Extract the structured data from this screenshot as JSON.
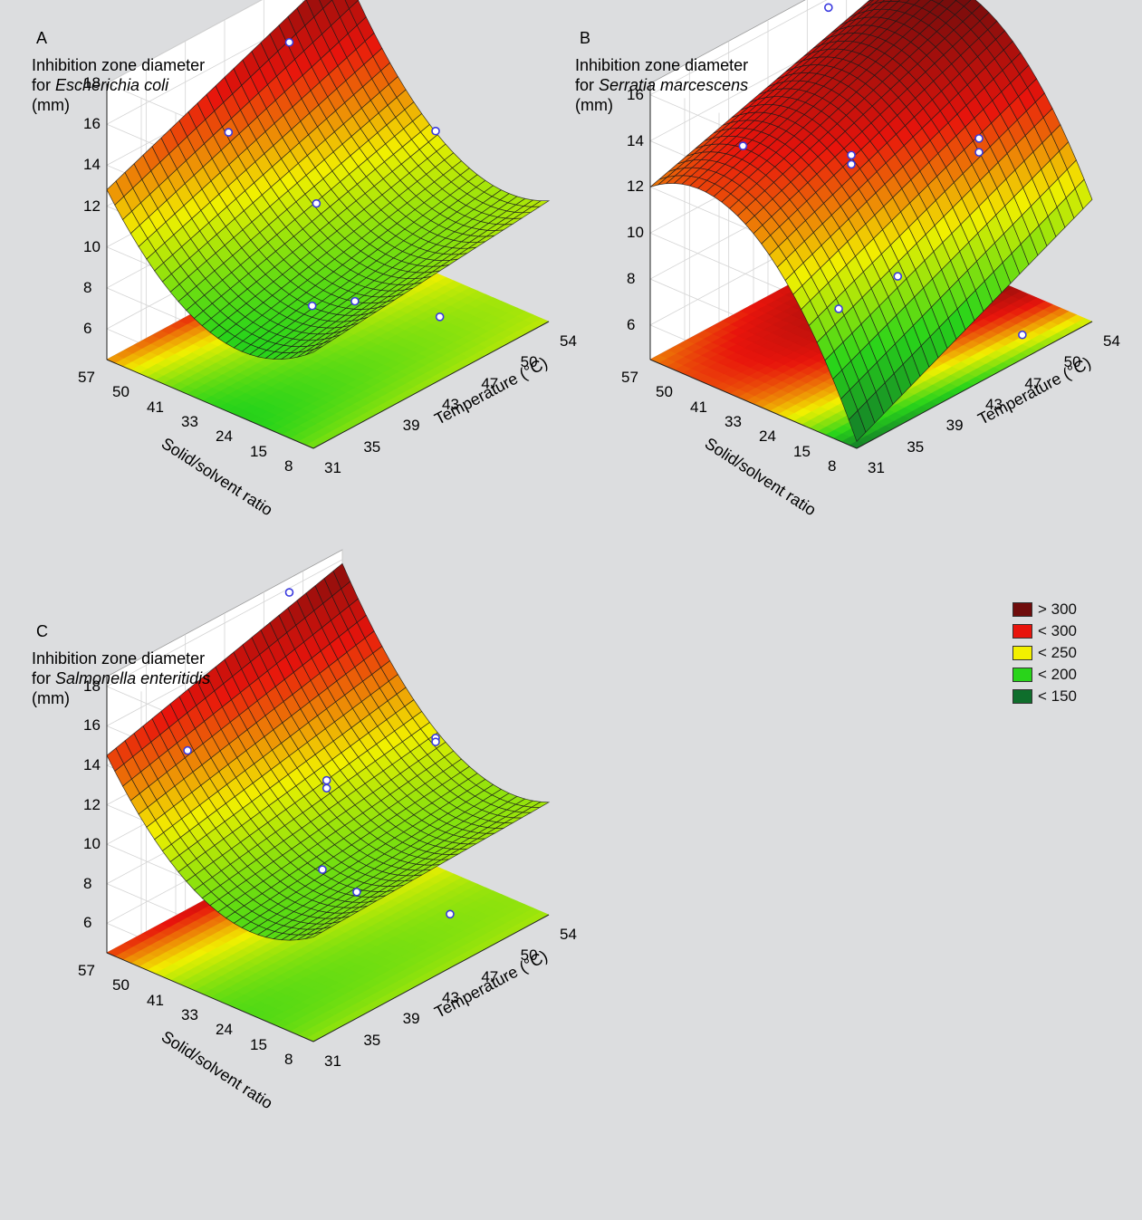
{
  "legend": [
    {
      "label": "> 300",
      "color": "#6f0c0c"
    },
    {
      "label": "< 300",
      "color": "#e8140c"
    },
    {
      "label": "< 250",
      "color": "#f2f000"
    },
    {
      "label": "< 200",
      "color": "#29d41a"
    },
    {
      "label": "< 150",
      "color": "#0f6e2c"
    }
  ],
  "chart_data": [
    {
      "type": "surface3d",
      "panel": "A",
      "title_line1": "Inhibition zone diameter",
      "title_for": "for",
      "title_species": "Escherichia coli",
      "title_unit": "(mm)",
      "xlabel": "Temperature (°C)",
      "ylabel": "Solid/solvent ratio",
      "x_ticks": [
        "31",
        "35",
        "39",
        "43",
        "47",
        "50",
        "54"
      ],
      "y_ticks": [
        "8",
        "15",
        "24",
        "33",
        "41",
        "50",
        "57"
      ],
      "z_ticks": [
        "6",
        "8",
        "10",
        "12",
        "14",
        "16",
        "18"
      ],
      "zlim": [
        4.5,
        18
      ],
      "corners": {
        "t31_r57": 12.8,
        "t31_r8": 9.2,
        "t54_r8": 10.4,
        "t54_r57": 17.6
      },
      "curvature": 3.0,
      "points": [
        [
          40,
          50,
          13.8
        ],
        [
          48,
          55,
          15.6
        ],
        [
          42,
          34,
          11.2
        ],
        [
          52,
          30,
          12.4
        ],
        [
          35,
          18,
          9.5
        ],
        [
          40,
          20,
          8.2
        ],
        [
          45,
          12,
          6.8
        ]
      ]
    },
    {
      "type": "surface3d",
      "panel": "B",
      "title_line1": "Inhibition zone diameter",
      "title_for": "for",
      "title_species": "Serratia marcescens",
      "title_unit": "(mm)",
      "xlabel": "Temperature (°C)",
      "ylabel": "Solid/solvent ratio",
      "x_ticks": [
        "31",
        "35",
        "39",
        "43",
        "47",
        "50",
        "54"
      ],
      "y_ticks": [
        "8",
        "15",
        "24",
        "33",
        "41",
        "50",
        "57"
      ],
      "z_ticks": [
        "6",
        "8",
        "10",
        "12",
        "14",
        "16"
      ],
      "zlim": [
        4.5,
        16.5
      ],
      "corners": {
        "t31_r57": 12.0,
        "t31_r8": 4.8,
        "t54_r8": 9.8,
        "t54_r57": 15.2
      },
      "curvature": -3.5,
      "points": [
        [
          38,
          52,
          12.5
        ],
        [
          48,
          56,
          15.8
        ],
        [
          42,
          36,
          12.4
        ],
        [
          42,
          36,
          12.0
        ],
        [
          52,
          30,
          11.2
        ],
        [
          52,
          30,
          10.6
        ],
        [
          35,
          22,
          8.5
        ],
        [
          42,
          25,
          8.0
        ],
        [
          48,
          10,
          5.2
        ]
      ]
    },
    {
      "type": "surface3d",
      "panel": "C",
      "title_line1": "Inhibition zone diameter",
      "title_for": "for",
      "title_species": "Salmonella enteritidis",
      "title_unit": "(mm)",
      "xlabel": "Temperature (°C)",
      "ylabel": "Solid/solvent ratio",
      "x_ticks": [
        "31",
        "35",
        "39",
        "43",
        "47",
        "50",
        "54"
      ],
      "y_ticks": [
        "8",
        "15",
        "24",
        "33",
        "41",
        "50",
        "57"
      ],
      "z_ticks": [
        "6",
        "8",
        "10",
        "12",
        "14",
        "16",
        "18"
      ],
      "zlim": [
        4.5,
        18.5
      ],
      "corners": {
        "t31_r57": 14.5,
        "t31_r8": 9.8,
        "t54_r8": 10.2,
        "t54_r57": 17.8
      },
      "curvature": 3.0,
      "points": [
        [
          36,
          50,
          14.0
        ],
        [
          48,
          55,
          18.2
        ],
        [
          43,
          34,
          12.0
        ],
        [
          43,
          34,
          11.6
        ],
        [
          52,
          30,
          12.0
        ],
        [
          52,
          30,
          11.8
        ],
        [
          36,
          18,
          10.9
        ],
        [
          41,
          22,
          8.0
        ],
        [
          46,
          12,
          6.4
        ]
      ]
    }
  ]
}
